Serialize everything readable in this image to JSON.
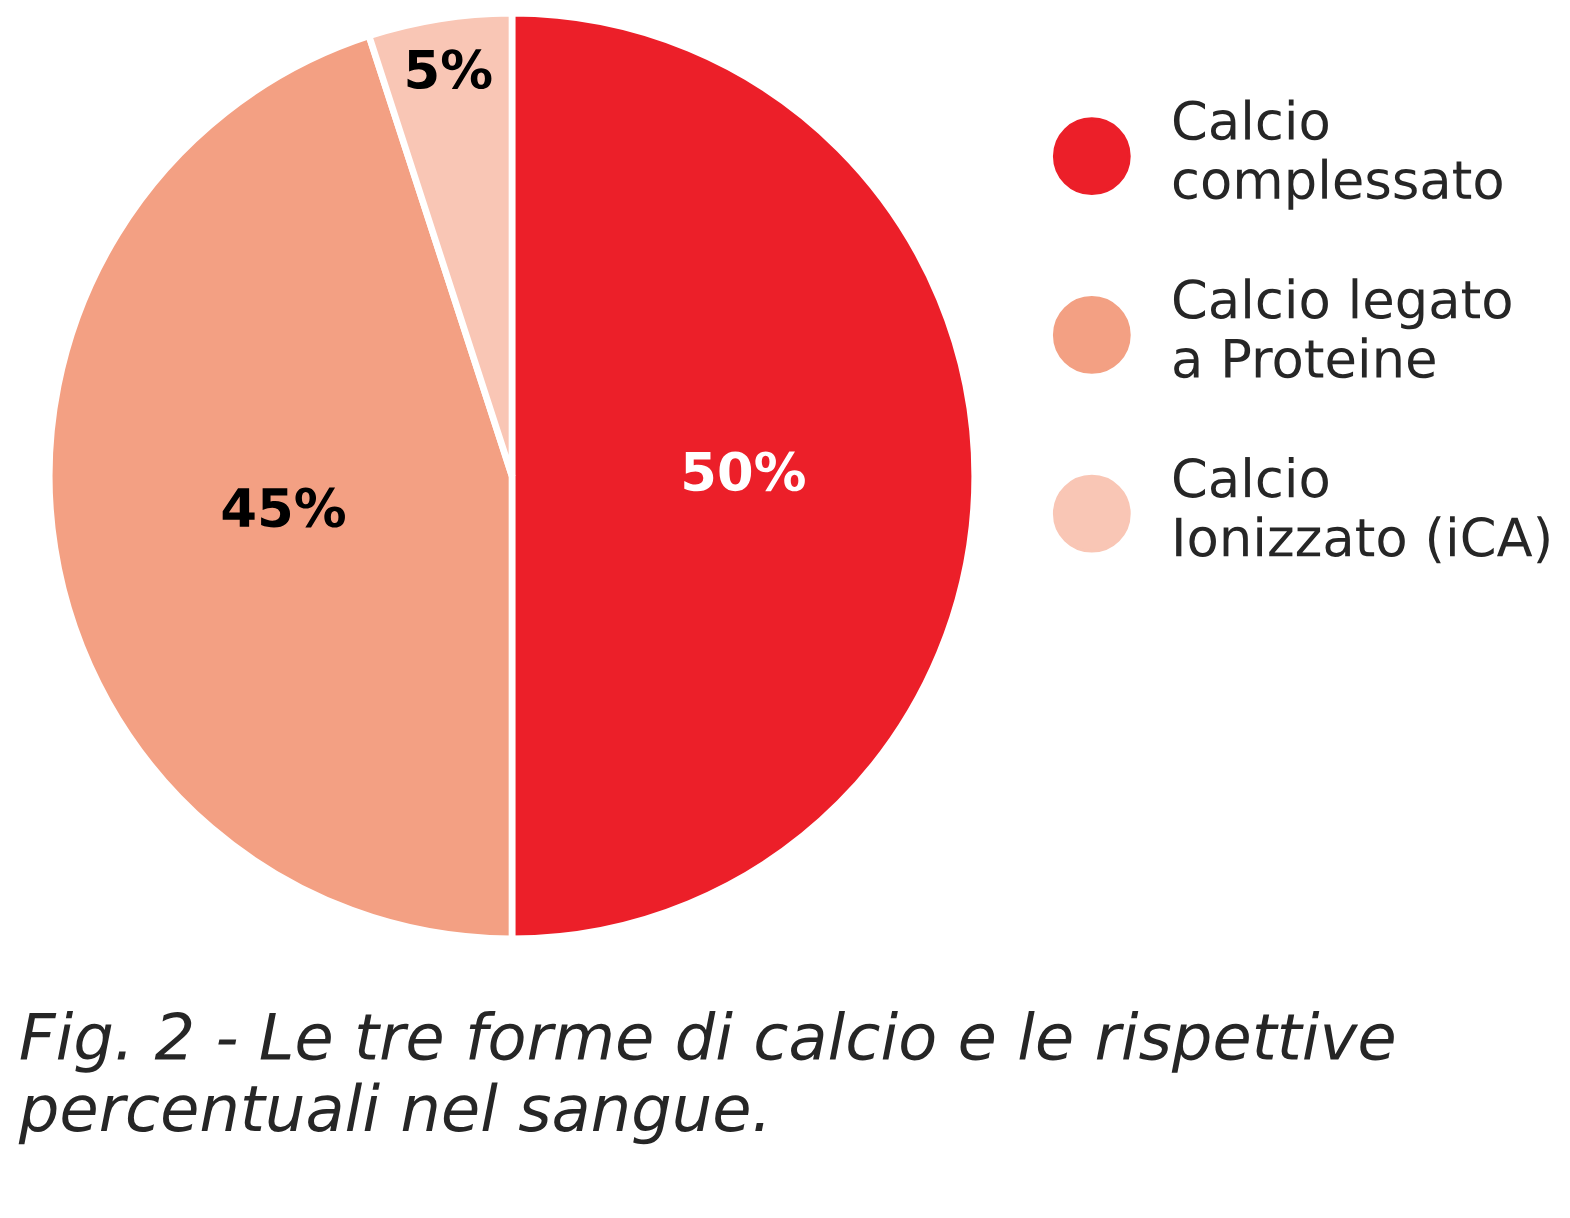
{
  "chart_data": {
    "type": "pie",
    "categories": [
      "Calcio\ncomplessato",
      "Calcio legato\na Proteine",
      "Calcio\nIonizzato (iCA)"
    ],
    "values": [
      50,
      45,
      5
    ],
    "colors": [
      "#ec1f29",
      "#f3a083",
      "#f9c6b5"
    ],
    "value_labels": [
      "50%",
      "45%",
      "5%"
    ],
    "legend": "right",
    "annotations": [
      "Fig. 2 - Le tre forme di calcio e le rispettive percentuali nel sangue."
    ]
  }
}
